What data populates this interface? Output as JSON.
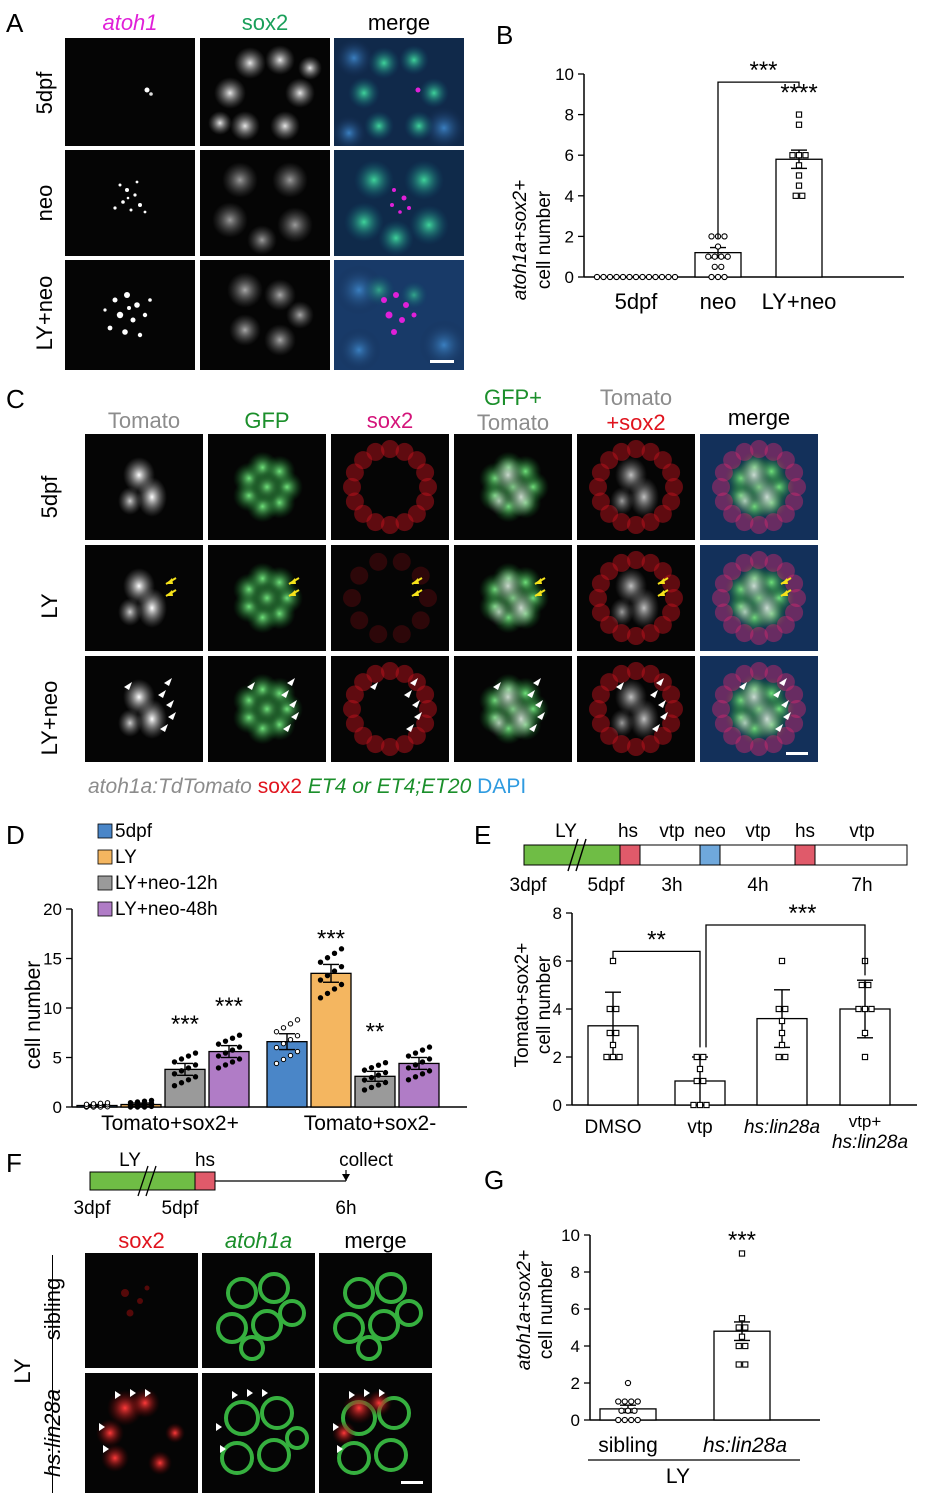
{
  "panels": {
    "A": {
      "letter": "A",
      "columns": [
        "atoh1",
        "sox2",
        "merge"
      ],
      "rows": [
        "5dpf",
        "neo",
        "LY+neo"
      ]
    },
    "B": {
      "letter": "B",
      "ylabel_line1": "atoh1a+sox2+",
      "ylabel_line2": "cell number",
      "sig_bracket": "***",
      "sig_top": "****"
    },
    "C": {
      "letter": "C",
      "columns": [
        "Tomato",
        "GFP",
        "sox2",
        "GFP+",
        "Tomato",
        "Tomato",
        "+sox2",
        "merge"
      ],
      "rows": [
        "5dpf",
        "LY",
        "LY+neo"
      ],
      "legend": {
        "part1": "atoh1a:TdTomato",
        "part2": "sox2",
        "part3": "ET4 or ET4;ET20",
        "part4": "DAPI"
      }
    },
    "D": {
      "letter": "D",
      "ylabel": "cell number",
      "legend": [
        "5dpf",
        "LY",
        "LY+neo-12h",
        "LY+neo-48h"
      ],
      "groups": [
        "Tomato+sox2+",
        "Tomato+sox2-"
      ],
      "sig": [
        "***",
        "***",
        "***",
        "**"
      ]
    },
    "E": {
      "letter": "E",
      "timeline": {
        "top": [
          "LY",
          "hs",
          "vtp",
          "neo",
          "vtp",
          "hs",
          "vtp"
        ],
        "bottom": [
          "3dpf",
          "5dpf",
          "3h",
          "4h",
          "7h"
        ]
      },
      "ylabel_line1": "Tomato+sox2+",
      "ylabel_line2": "cell number",
      "categories": [
        "DMSO",
        "vtp",
        "hs:lin28a",
        "vtp+",
        "hs:lin28a"
      ],
      "sig": [
        "**",
        "***"
      ]
    },
    "F": {
      "letter": "F",
      "timeline": {
        "top": [
          "LY",
          "hs",
          "collect"
        ],
        "bottom": [
          "3dpf",
          "5dpf",
          "6h"
        ]
      },
      "columns": [
        "sox2",
        "atoh1a",
        "merge"
      ],
      "rows": [
        "sibling",
        "hs:lin28a"
      ],
      "group": "LY"
    },
    "G": {
      "letter": "G",
      "ylabel_line1": "atoh1a+sox2+",
      "ylabel_line2": "cell number",
      "categories": [
        "sibling",
        "hs:lin28a"
      ],
      "group": "LY",
      "sig": "***"
    }
  },
  "colors": {
    "magenta": "#e020d8",
    "green_label": "#1a9f5a",
    "gfp_green": "#1b8f2b",
    "red": "#e0141e",
    "pink": "#d4147a",
    "gray": "#8c8c8c",
    "blue_label": "#2f9be0",
    "bar_blue": "#4a86c8",
    "bar_orange": "#f4b660",
    "bar_gray": "#9a9a9a",
    "bar_purple": "#b07cc6",
    "tl_green": "#6fbd45",
    "tl_red": "#e05a6a",
    "tl_blue": "#6fa8dc"
  },
  "chart_data": [
    {
      "panel": "B",
      "type": "bar",
      "categories": [
        "5dpf",
        "neo",
        "LY+neo"
      ],
      "values": [
        0,
        1.2,
        5.8
      ],
      "errors": [
        0,
        0.25,
        0.45
      ],
      "points": [
        [
          0,
          0,
          0,
          0,
          0,
          0,
          0,
          0,
          0,
          0,
          0,
          0,
          0
        ],
        [
          0,
          0,
          0,
          0.5,
          0.5,
          1,
          1,
          1,
          1,
          1.5,
          2,
          2,
          2
        ],
        [
          4,
          4,
          4.5,
          5,
          5.5,
          6,
          6,
          6,
          7.5,
          8
        ]
      ],
      "ylim": [
        0,
        10
      ],
      "yticks": [
        0,
        2,
        4,
        6,
        8,
        10
      ]
    },
    {
      "panel": "D",
      "type": "bar",
      "categories": [
        "Tomato+sox2+",
        "Tomato+sox2-"
      ],
      "series": [
        {
          "name": "5dpf",
          "values": [
            0.15,
            6.6
          ],
          "errors": [
            0.1,
            0.8
          ]
        },
        {
          "name": "LY",
          "values": [
            0.25,
            13.5
          ],
          "errors": [
            0.15,
            0.9
          ]
        },
        {
          "name": "LY+neo-12h",
          "values": [
            3.8,
            3.1
          ],
          "errors": [
            0.6,
            0.5
          ]
        },
        {
          "name": "LY+neo-48h",
          "values": [
            5.6,
            4.4
          ],
          "errors": [
            0.6,
            0.6
          ]
        }
      ],
      "ylim": [
        0,
        20
      ],
      "yticks": [
        0,
        5,
        10,
        15,
        20
      ]
    },
    {
      "panel": "E",
      "type": "bar",
      "categories": [
        "DMSO",
        "vtp",
        "hs:lin28a",
        "vtp+hs:lin28a"
      ],
      "values": [
        3.3,
        1.0,
        3.6,
        4.0
      ],
      "errors": [
        1.4,
        1.0,
        1.2,
        1.2
      ],
      "points": [
        [
          2,
          2,
          2,
          2.5,
          3,
          3,
          4,
          4,
          6
        ],
        [
          0,
          0,
          0,
          1,
          1,
          1.5,
          2,
          2
        ],
        [
          2,
          2,
          2.5,
          3,
          3.5,
          4,
          4,
          6
        ],
        [
          2,
          3,
          4,
          4,
          4,
          5,
          5,
          6
        ]
      ],
      "ylim": [
        0,
        8
      ],
      "yticks": [
        0,
        2,
        4,
        6,
        8
      ]
    },
    {
      "panel": "G",
      "type": "bar",
      "categories": [
        "sibling",
        "hs:lin28a"
      ],
      "values": [
        0.6,
        4.8
      ],
      "errors": [
        0.2,
        0.5
      ],
      "points": [
        [
          0,
          0,
          0,
          0,
          0.5,
          0.5,
          0.5,
          1,
          1,
          1,
          1,
          2
        ],
        [
          3,
          3,
          4,
          4,
          4.5,
          5,
          5,
          5.5,
          9
        ]
      ],
      "ylim": [
        0,
        10
      ],
      "yticks": [
        0,
        2,
        4,
        6,
        8,
        10
      ]
    }
  ]
}
